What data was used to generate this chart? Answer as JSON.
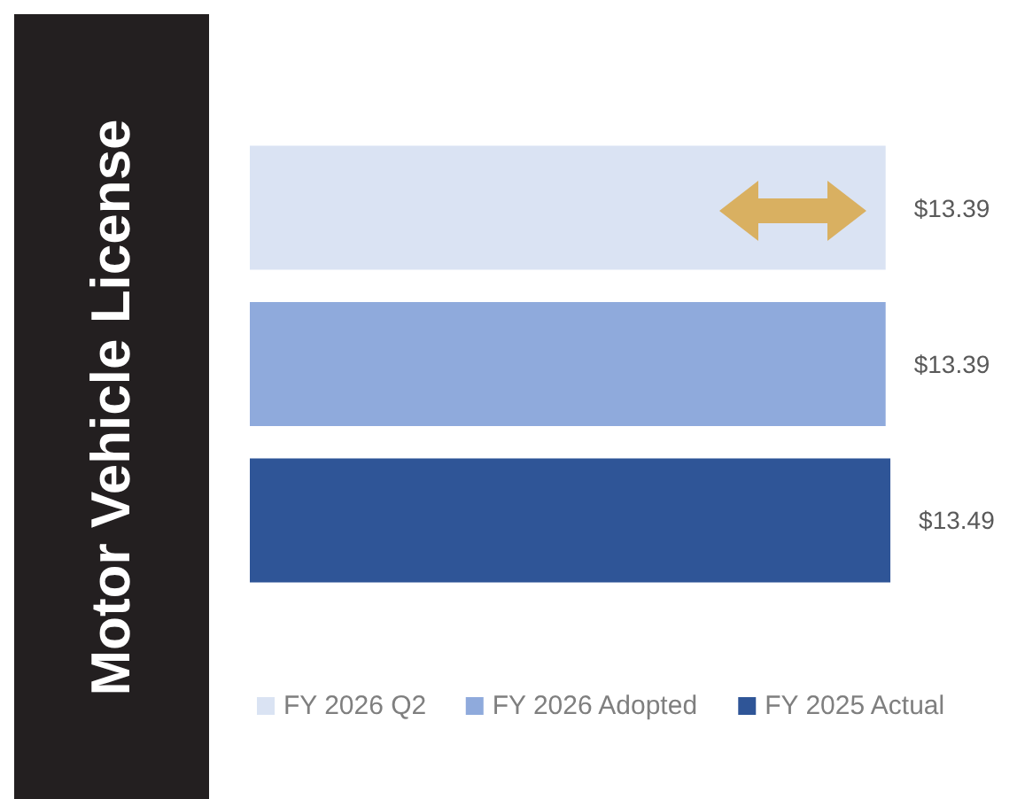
{
  "chart_data": {
    "type": "bar",
    "orientation": "horizontal",
    "title": "Motor Vehicle License",
    "categories": [
      null
    ],
    "series": [
      {
        "name": "FY 2026 Q2",
        "color": "#dae3f3",
        "values": [
          13.39
        ],
        "value_labels": [
          "$13.39"
        ]
      },
      {
        "name": "FY 2026 Adopted",
        "color": "#8faadc",
        "values": [
          13.39
        ],
        "value_labels": [
          "$13.39"
        ]
      },
      {
        "name": "FY 2025 Actual",
        "color": "#2f5597",
        "values": [
          13.49
        ],
        "value_labels": [
          "$13.49"
        ]
      }
    ],
    "legend": "bottom"
  }
}
